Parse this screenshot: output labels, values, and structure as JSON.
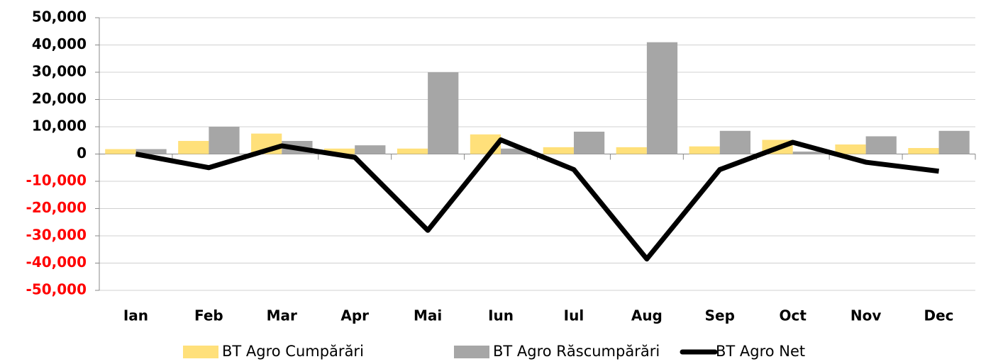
{
  "chart_data": {
    "type": "bar",
    "categories": [
      "Ian",
      "Feb",
      "Mar",
      "Apr",
      "Mai",
      "Iun",
      "Iul",
      "Aug",
      "Sep",
      "Oct",
      "Nov",
      "Dec"
    ],
    "series": [
      {
        "name": "BT Agro Cumpărări",
        "type": "bar",
        "color": "#ffe07a",
        "values": [
          1800,
          4800,
          7500,
          2000,
          2000,
          7200,
          2500,
          2500,
          2800,
          5200,
          3500,
          2200
        ]
      },
      {
        "name": "BT Agro Răscumpărări",
        "type": "bar",
        "color": "#a6a6a6",
        "values": [
          1800,
          10000,
          4800,
          3200,
          30000,
          2000,
          8200,
          41000,
          8500,
          900,
          6500,
          8500
        ]
      },
      {
        "name": "BT Agro Net",
        "type": "line",
        "color": "#000000",
        "values": [
          0,
          -5000,
          3000,
          -1200,
          -28000,
          5200,
          -5700,
          -38500,
          -5700,
          4300,
          -3000,
          -6300
        ]
      }
    ],
    "ylim": [
      -50000,
      50000
    ],
    "yticks": [
      {
        "value": 50000,
        "label": "50,000"
      },
      {
        "value": 40000,
        "label": "40,000"
      },
      {
        "value": 30000,
        "label": "30,000"
      },
      {
        "value": 20000,
        "label": "20,000"
      },
      {
        "value": 10000,
        "label": "10,000"
      },
      0,
      {
        "value": -10000,
        "label": "-10,000"
      },
      {
        "value": -20000,
        "label": "-20,000"
      },
      {
        "value": -30000,
        "label": "-30,000"
      },
      {
        "value": -40000,
        "label": "-40,000"
      },
      {
        "value": -50000,
        "label": "-50,000"
      }
    ],
    "grid": true,
    "legend": "bottom"
  }
}
